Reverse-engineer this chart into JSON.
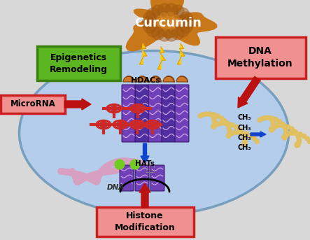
{
  "bg_color": "#d8d8d8",
  "cell_color": "#b0ccee",
  "cell_edge_color": "#7099bb",
  "curcumin_text": "Curcumin",
  "curcumin_color": "#c87818",
  "epigenetics_text": "Epigenetics\nRemodeling",
  "epigenetics_bg": "#5ab520",
  "epigenetics_border": "#3a8010",
  "dna_meth_text": "DNA\nMethylation",
  "dna_meth_bg": "#f09090",
  "dna_meth_border": "#cc2020",
  "micro_rna_text": "MicroRNA",
  "micro_rna_bg": "#f09090",
  "micro_rna_border": "#cc2020",
  "histone_text": "Histone\nModification",
  "histone_bg": "#f09090",
  "histone_border": "#cc2020",
  "hdacs_text": "HDACs",
  "hats_text": "HATs",
  "dna_label": "DNA",
  "ch3_text": "CH₃",
  "lightning_color": "#ffcc00",
  "lightning_edge": "#cc8800",
  "arrow_color": "#bb1111",
  "blue_arrow_color": "#1144cc",
  "histone_purple": "#7040b8",
  "histone_dark": "#5030a0",
  "hdac_orange": "#d07828",
  "hat_green": "#70cc20",
  "dna_strand_color": "#d090b8",
  "dna_bead_color": "#d8a0c0",
  "nucleosome_red": "#cc2828",
  "nucleosome_dark": "#882020",
  "dna_right_strand": "#c8a840",
  "dna_right_bead": "#e0c060"
}
